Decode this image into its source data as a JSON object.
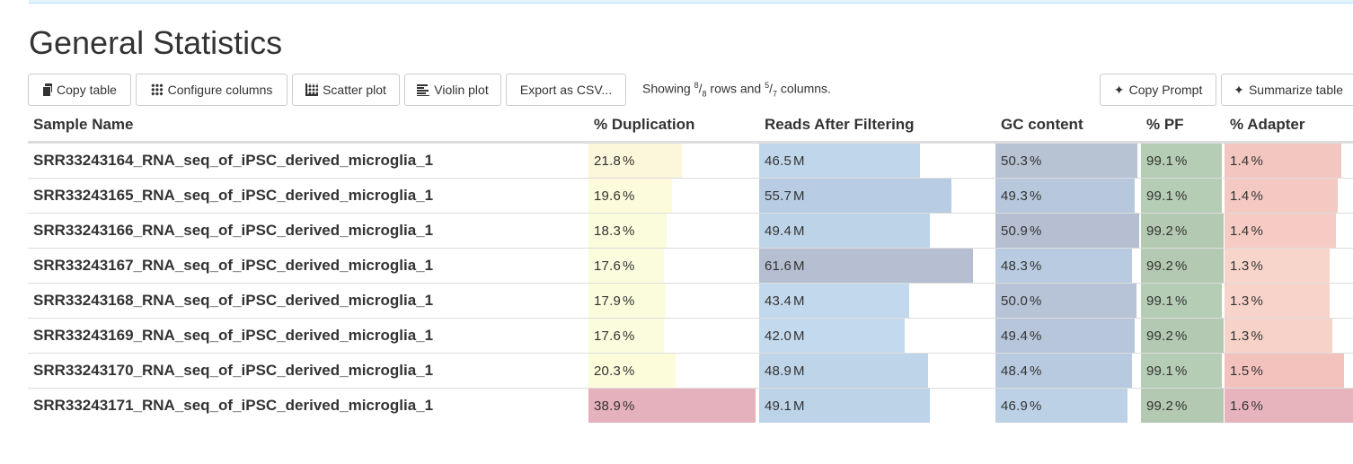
{
  "page": {
    "title": "General Statistics"
  },
  "toolbar": {
    "copy_table": "Copy table",
    "configure_columns": "Configure columns",
    "scatter_plot": "Scatter plot",
    "violin_plot": "Violin plot",
    "export_csv": "Export as CSV...",
    "showing_prefix": "Showing",
    "rows_shown": "8",
    "rows_total": "8",
    "rows_word": "rows and",
    "cols_shown": "5",
    "cols_total": "7",
    "cols_word": "columns.",
    "copy_prompt": "Copy Prompt",
    "summarize_table": "Summarize table"
  },
  "table": {
    "headers": {
      "sample": "Sample Name",
      "dup": "% Duplication",
      "reads": "Reads After Filtering",
      "gc": "GC content",
      "pf": "% PF",
      "adapter": "% Adapter"
    },
    "units": {
      "dup": "%",
      "reads": "M",
      "gc": "%",
      "pf": "%",
      "adapter": "%"
    },
    "rows": [
      {
        "sample": "SRR33243164_RNA_seq_of_iPSC_derived_microglia_1",
        "dup": "21.8",
        "reads": "46.5",
        "gc": "50.3",
        "pf": "99.1",
        "adapter": "1.4"
      },
      {
        "sample": "SRR33243165_RNA_seq_of_iPSC_derived_microglia_1",
        "dup": "19.6",
        "reads": "55.7",
        "gc": "49.3",
        "pf": "99.1",
        "adapter": "1.4"
      },
      {
        "sample": "SRR33243166_RNA_seq_of_iPSC_derived_microglia_1",
        "dup": "18.3",
        "reads": "49.4",
        "gc": "50.9",
        "pf": "99.2",
        "adapter": "1.4"
      },
      {
        "sample": "SRR33243167_RNA_seq_of_iPSC_derived_microglia_1",
        "dup": "17.6",
        "reads": "61.6",
        "gc": "48.3",
        "pf": "99.2",
        "adapter": "1.3"
      },
      {
        "sample": "SRR33243168_RNA_seq_of_iPSC_derived_microglia_1",
        "dup": "17.9",
        "reads": "43.4",
        "gc": "50.0",
        "pf": "99.1",
        "adapter": "1.3"
      },
      {
        "sample": "SRR33243169_RNA_seq_of_iPSC_derived_microglia_1",
        "dup": "17.6",
        "reads": "42.0",
        "gc": "49.4",
        "pf": "99.2",
        "adapter": "1.3"
      },
      {
        "sample": "SRR33243170_RNA_seq_of_iPSC_derived_microglia_1",
        "dup": "20.3",
        "reads": "48.9",
        "gc": "48.4",
        "pf": "99.1",
        "adapter": "1.5"
      },
      {
        "sample": "SRR33243171_RNA_seq_of_iPSC_derived_microglia_1",
        "dup": "38.9",
        "reads": "49.1",
        "gc": "46.9",
        "pf": "99.2",
        "adapter": "1.6"
      }
    ]
  },
  "bars": {
    "dup_fill": [
      0.56,
      0.5,
      0.47,
      0.45,
      0.46,
      0.45,
      0.52,
      1.0
    ],
    "dup_color": [
      "#fcf6da",
      "#fcfbdb",
      "#fbfcdc",
      "#fafcdd",
      "#fafcdc",
      "#fafcdd",
      "#fcfcdb",
      "#e5b1bc"
    ],
    "reads_fill": [
      0.75,
      0.9,
      0.8,
      1.0,
      0.7,
      0.68,
      0.79,
      0.8
    ],
    "reads_color": [
      "#c0d6ea",
      "#b8cde3",
      "#bdd3e8",
      "#b5bfd1",
      "#c2d8ec",
      "#c3d9ed",
      "#bed4e9",
      "#bdd3e8"
    ],
    "gc_fill": [
      0.99,
      0.97,
      1.0,
      0.95,
      0.98,
      0.97,
      0.95,
      0.92
    ],
    "gc_color": [
      "#b7c2d3",
      "#b7c7dc",
      "#b5bfd1",
      "#b8cbe0",
      "#b7c3d6",
      "#b7c6db",
      "#b8cadf",
      "#bcd1e6"
    ],
    "pf_fill": [
      0.98,
      0.98,
      1.0,
      1.0,
      0.98,
      1.0,
      0.98,
      1.0
    ],
    "pf_color": [
      "#b5cdb4",
      "#b5cdb4",
      "#b4c9b1",
      "#b4c9b1",
      "#b5cdb4",
      "#b4c9b1",
      "#b5cdb4",
      "#b4c9b1"
    ],
    "adapter_fill": [
      0.91,
      0.88,
      0.87,
      0.82,
      0.82,
      0.84,
      0.93,
      1.0
    ],
    "adapter_color": [
      "#f4c6c0",
      "#f4c9c2",
      "#f5cbc4",
      "#f8d5cb",
      "#f7d3c9",
      "#f7d2c8",
      "#f3c2bd",
      "#e7b4bd"
    ]
  }
}
